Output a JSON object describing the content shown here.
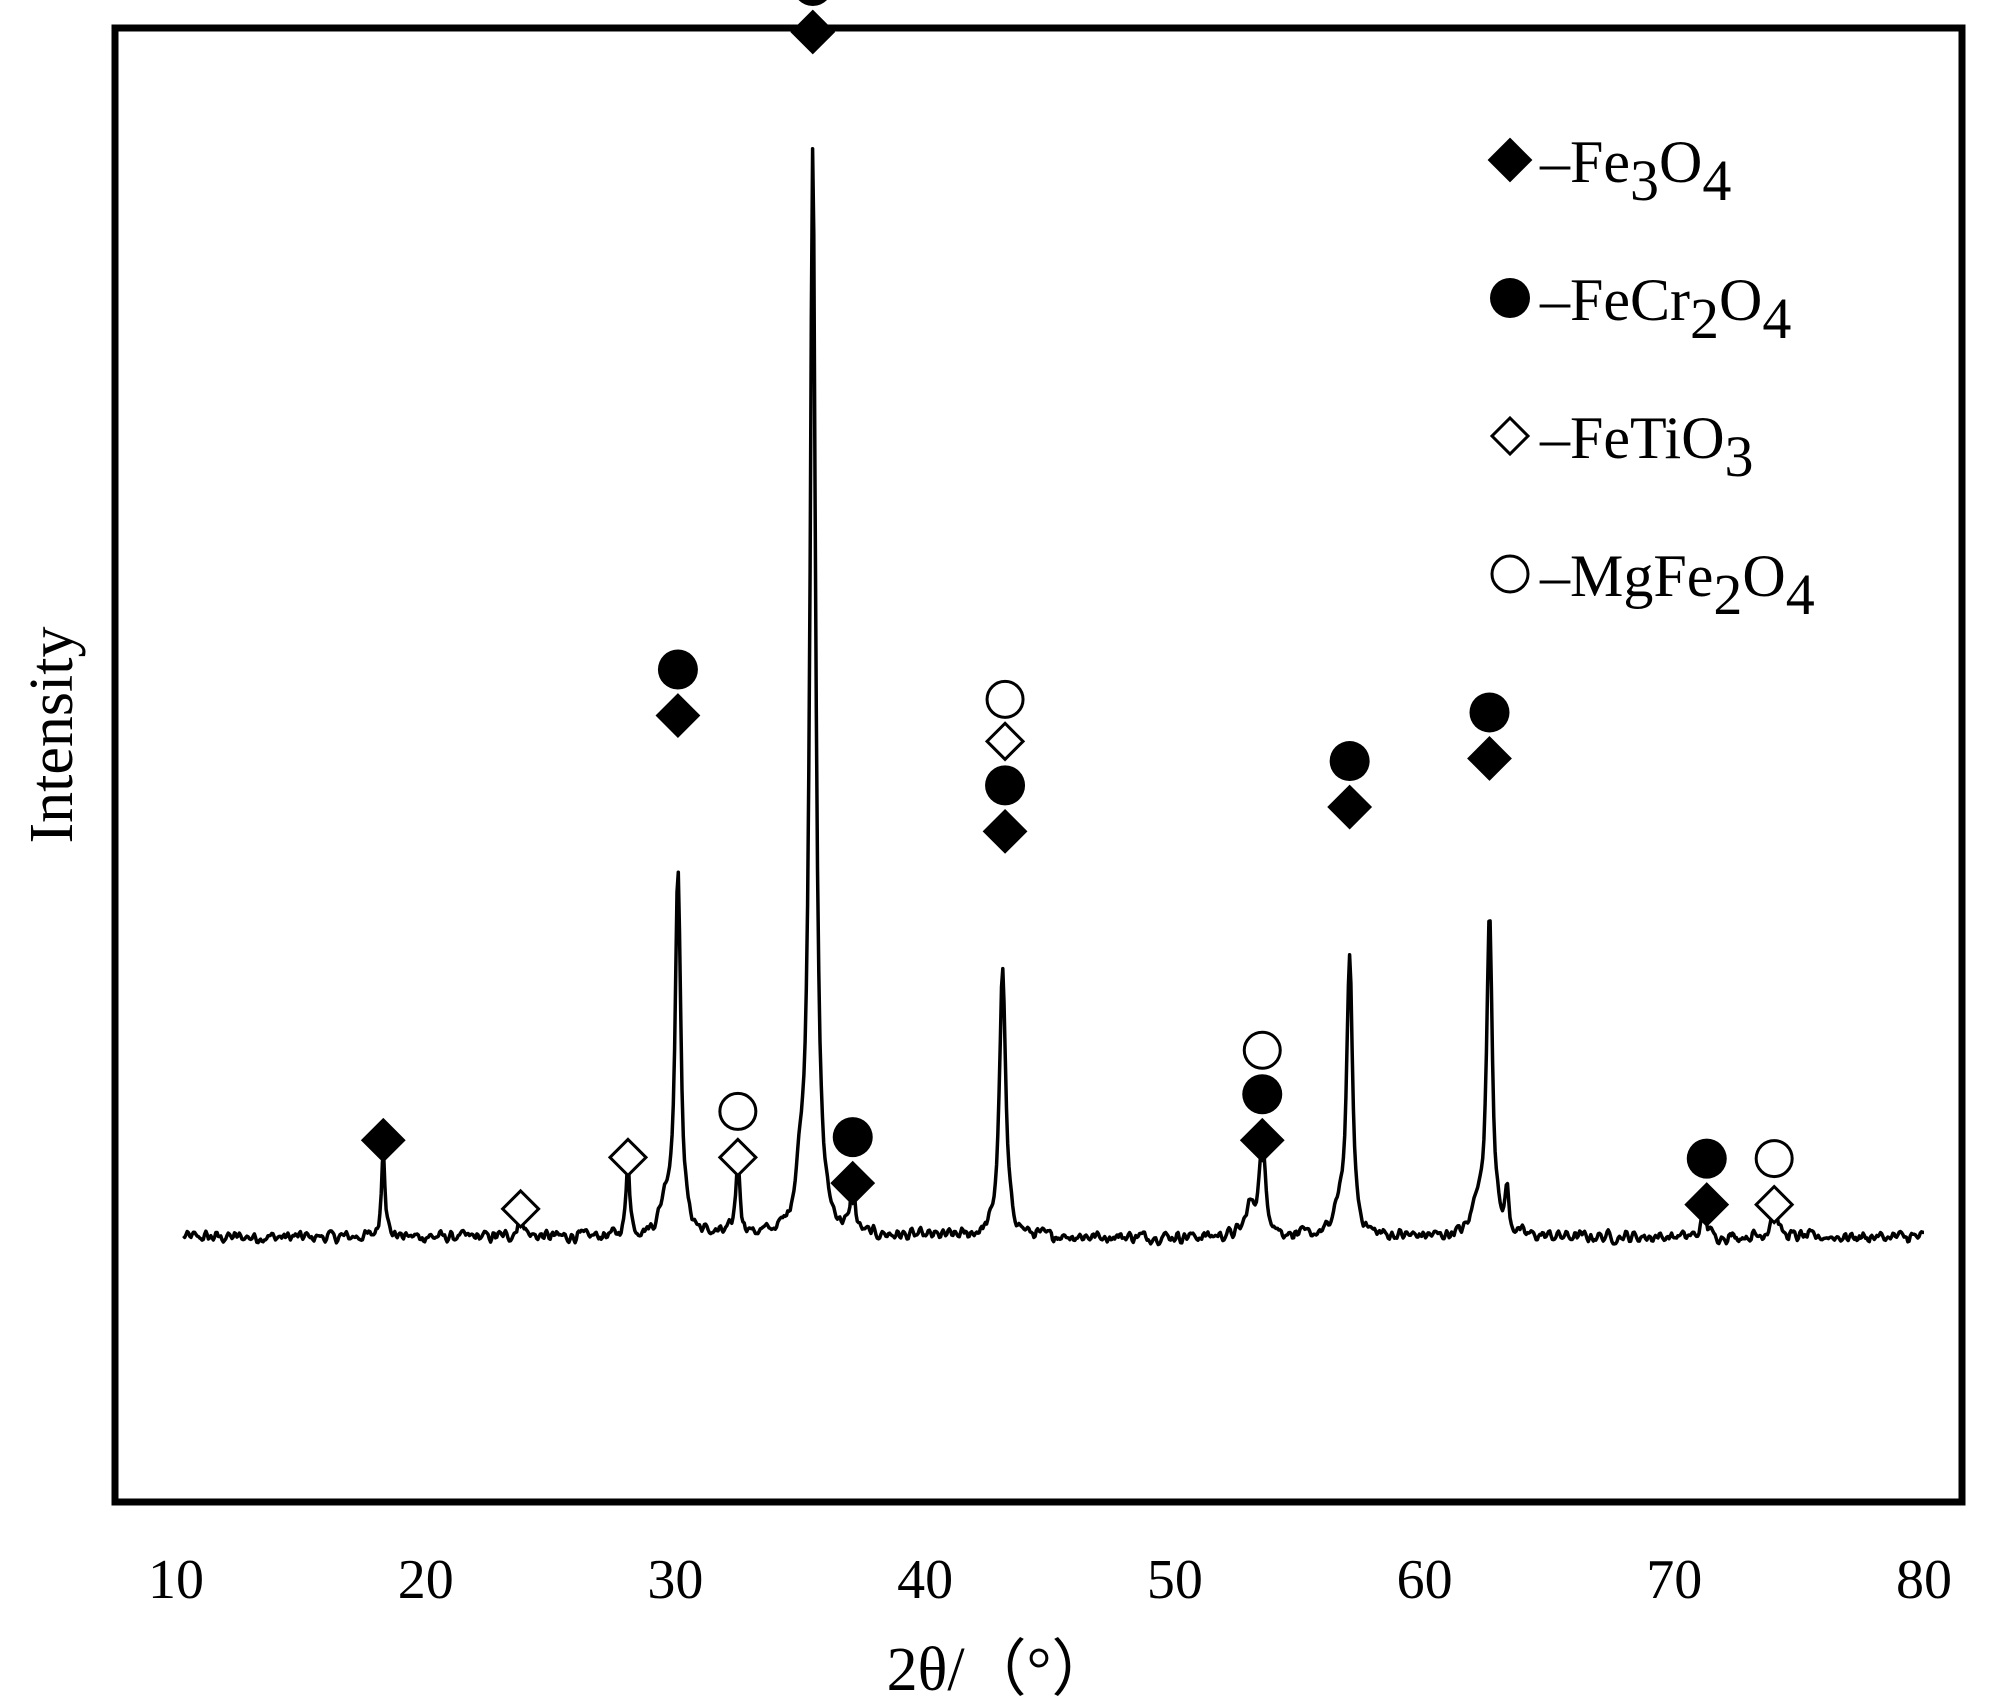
{
  "chart_data": {
    "type": "line",
    "title": "",
    "xlabel": "2θ/（°）",
    "ylabel": "Intensity",
    "xlim": [
      10,
      80
    ],
    "ylim": [
      0,
      1100
    ],
    "x_ticks": [
      10,
      20,
      30,
      40,
      50,
      60,
      70,
      80
    ],
    "x_tick_labels": [
      "10",
      "20",
      "30",
      "40",
      "50",
      "60",
      "70",
      "80"
    ],
    "y_ticks_shown": false,
    "grid": false,
    "legend": {
      "placement": "top-right",
      "entries": [
        {
          "marker": "filled-diamond",
          "label_parts": [
            [
              "–Fe",
              ""
            ],
            [
              "3",
              "sub"
            ],
            [
              "O",
              ""
            ],
            [
              "4",
              "sub"
            ]
          ]
        },
        {
          "marker": "filled-circle",
          "label_parts": [
            [
              "–FeCr",
              ""
            ],
            [
              "2",
              "sub"
            ],
            [
              "O",
              ""
            ],
            [
              "4",
              "sub"
            ]
          ]
        },
        {
          "marker": "open-diamond",
          "label_parts": [
            [
              "–FeTiO",
              ""
            ],
            [
              "3",
              "sub"
            ]
          ]
        },
        {
          "marker": "open-circle",
          "label_parts": [
            [
              "–MgFe",
              ""
            ],
            [
              "2",
              "sub"
            ],
            [
              "O",
              ""
            ],
            [
              "4",
              "sub"
            ]
          ]
        }
      ]
    },
    "series": [
      {
        "baseline": 138,
        "peaks": [
          {
            "x": 18.3,
            "h": 90,
            "w": 0.12
          },
          {
            "x": 23.8,
            "h": 30,
            "w": 0.15
          },
          {
            "x": 28.1,
            "h": 75,
            "w": 0.12
          },
          {
            "x": 30.1,
            "h": 345,
            "w": 0.2
          },
          {
            "x": 29.6,
            "h": 30,
            "w": 0.35
          },
          {
            "x": 32.5,
            "h": 70,
            "w": 0.15
          },
          {
            "x": 35.5,
            "h": 1035,
            "w": 0.2
          },
          {
            "x": 35.0,
            "h": 40,
            "w": 0.3
          },
          {
            "x": 37.1,
            "h": 60,
            "w": 0.12
          },
          {
            "x": 43.1,
            "h": 255,
            "w": 0.22
          },
          {
            "x": 53.5,
            "h": 85,
            "w": 0.25
          },
          {
            "x": 53.0,
            "h": 25,
            "w": 0.3
          },
          {
            "x": 57.0,
            "h": 265,
            "w": 0.2
          },
          {
            "x": 56.6,
            "h": 25,
            "w": 0.3
          },
          {
            "x": 62.6,
            "h": 310,
            "w": 0.2
          },
          {
            "x": 62.1,
            "h": 30,
            "w": 0.3
          },
          {
            "x": 63.3,
            "h": 40,
            "w": 0.12
          },
          {
            "x": 71.2,
            "h": 30,
            "w": 0.15
          },
          {
            "x": 74.0,
            "h": 35,
            "w": 0.2
          }
        ],
        "noise_amplitude": 8
      }
    ],
    "annotations": [
      {
        "x": 18.3,
        "y": 0.225,
        "markers": [
          "filled-diamond"
        ]
      },
      {
        "x": 23.8,
        "y": 0.177,
        "markers": [
          "open-diamond"
        ]
      },
      {
        "x": 28.1,
        "y": 0.213,
        "markers": [
          "open-diamond"
        ]
      },
      {
        "x": 30.1,
        "y": 0.522,
        "markers": [
          "filled-diamond",
          "filled-circle"
        ]
      },
      {
        "x": 32.5,
        "y": 0.213,
        "markers": [
          "open-diamond",
          "open-circle"
        ]
      },
      {
        "x": 35.5,
        "y": 1.0,
        "markers": [
          "filled-diamond",
          "filled-circle"
        ]
      },
      {
        "x": 37.1,
        "y": 0.195,
        "markers": [
          "filled-diamond",
          "filled-circle"
        ]
      },
      {
        "x": 43.2,
        "y": 0.441,
        "markers": [
          "filled-diamond",
          "filled-circle",
          "open-diamond",
          "open-circle"
        ]
      },
      {
        "x": 53.5,
        "y": 0.225,
        "markers": [
          "filled-diamond",
          "filled-circle",
          "open-circle"
        ]
      },
      {
        "x": 57.0,
        "y": 0.458,
        "markers": [
          "filled-diamond",
          "filled-circle"
        ]
      },
      {
        "x": 62.6,
        "y": 0.492,
        "markers": [
          "filled-diamond",
          "filled-circle"
        ]
      },
      {
        "x": 71.3,
        "y": 0.18,
        "markers": [
          "filled-diamond",
          "filled-circle"
        ]
      },
      {
        "x": 74.0,
        "y": 0.18,
        "markers": [
          "open-diamond",
          "open-circle"
        ]
      }
    ]
  },
  "colors": {
    "line": "#000000",
    "frame": "#000000",
    "background": "#ffffff"
  }
}
